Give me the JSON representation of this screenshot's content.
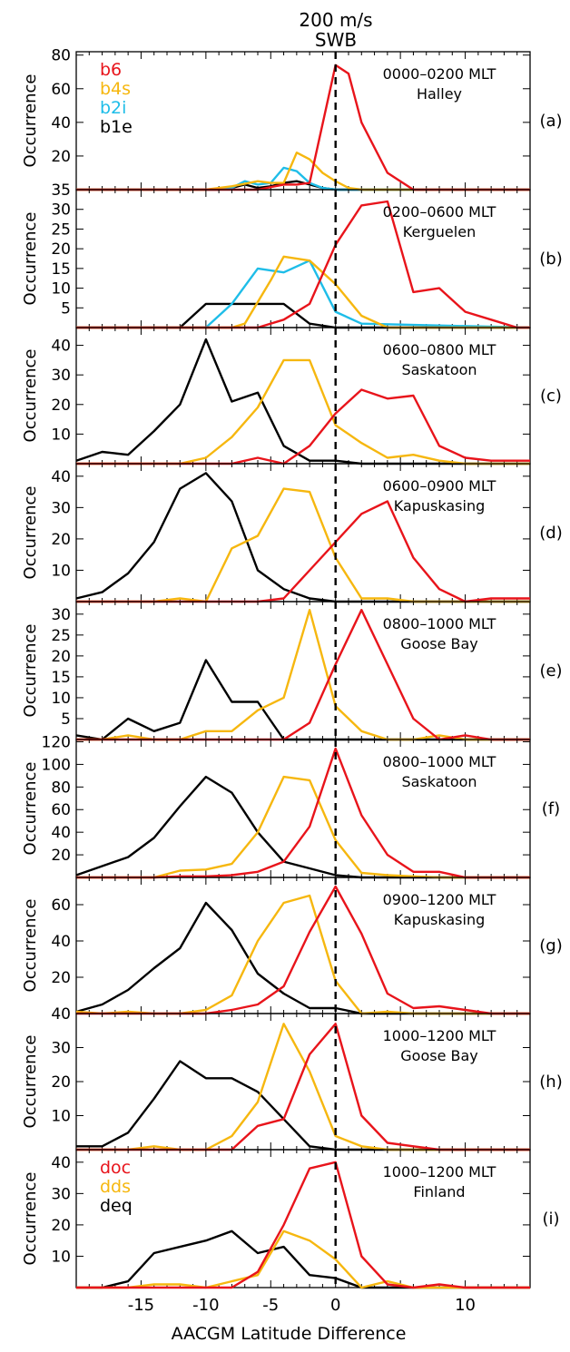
{
  "header": {
    "speed": "200 m/s",
    "boundary": "SWB"
  },
  "xlabel": "AACGM Latitude Difference",
  "xticks": [
    -15,
    -10,
    -5,
    0,
    10
  ],
  "legend_top": [
    {
      "label": "b6",
      "color": "#e8141b"
    },
    {
      "label": "b4s",
      "color": "#f6b70f"
    },
    {
      "label": "b2i",
      "color": "#1ebde8"
    },
    {
      "label": "b1e",
      "color": "#000000"
    }
  ],
  "legend_bottom": [
    {
      "label": "doc",
      "color": "#e8141b"
    },
    {
      "label": "dds",
      "color": "#f6b70f"
    },
    {
      "label": "deq",
      "color": "#000000"
    }
  ],
  "chart_data": [
    {
      "type": "line",
      "panel": "(a)",
      "mlt": "0000–0200 MLT",
      "station": "Halley",
      "ylabel": "Occurrence",
      "xlim": [
        -20,
        15
      ],
      "ylim": [
        0,
        82
      ],
      "yticks": [
        20,
        40,
        60,
        80
      ],
      "series": [
        {
          "name": "b6",
          "color": "#e8141b",
          "x": [
            -20,
            -18,
            -16,
            -14,
            -12,
            -10,
            -8,
            -6,
            -4,
            -3,
            -2,
            0,
            1,
            2,
            4,
            5,
            6,
            8,
            10,
            12,
            14,
            15
          ],
          "y": [
            0,
            0,
            0,
            0,
            0,
            0,
            0,
            0,
            3,
            3,
            4,
            74,
            69,
            40,
            10,
            5,
            0,
            0,
            0,
            0,
            0,
            0
          ]
        },
        {
          "name": "b4s",
          "color": "#f6b70f",
          "x": [
            -20,
            -10,
            -8,
            -6,
            -5,
            -4,
            -3,
            -2,
            -1,
            0,
            1,
            2,
            15
          ],
          "y": [
            0,
            0,
            2,
            5,
            4,
            4,
            22,
            18,
            10,
            5,
            1,
            0,
            0
          ]
        },
        {
          "name": "b2i",
          "color": "#1ebde8",
          "x": [
            -20,
            -10,
            -8,
            -7,
            -6,
            -5,
            -4,
            -3,
            -2,
            -1,
            0,
            15
          ],
          "y": [
            0,
            0,
            1,
            5,
            3,
            4,
            13,
            11,
            4,
            1,
            0,
            0
          ]
        },
        {
          "name": "b1e",
          "color": "#000000",
          "x": [
            -20,
            -9,
            -8,
            -7,
            -6,
            -5,
            -4,
            -3,
            -2,
            -1,
            0,
            15
          ],
          "y": [
            0,
            0,
            1,
            3,
            1,
            2,
            4,
            5,
            3,
            1,
            0,
            0
          ]
        }
      ]
    },
    {
      "type": "line",
      "panel": "(b)",
      "mlt": "0200–0600 MLT",
      "station": "Kerguelen",
      "ylabel": "Occurrence",
      "xlim": [
        -20,
        15
      ],
      "ylim": [
        0,
        35
      ],
      "yticks": [
        5,
        10,
        15,
        20,
        25,
        30,
        35
      ],
      "series": [
        {
          "name": "b6",
          "color": "#e8141b",
          "x": [
            -20,
            -6,
            -4,
            -2,
            0,
            2,
            4,
            6,
            8,
            10,
            12,
            14,
            15
          ],
          "y": [
            0,
            0,
            2,
            6,
            21,
            31,
            32,
            9,
            10,
            4,
            2,
            0,
            0
          ]
        },
        {
          "name": "b4s",
          "color": "#f6b70f",
          "x": [
            -20,
            -8,
            -7,
            -5,
            -4,
            -2,
            0,
            2,
            4,
            15
          ],
          "y": [
            0,
            0,
            1,
            12,
            18,
            17,
            11,
            3,
            0,
            0
          ]
        },
        {
          "name": "b2i",
          "color": "#1ebde8",
          "x": [
            -20,
            -10,
            -8,
            -6,
            -4,
            -2,
            0,
            2,
            15
          ],
          "y": [
            0,
            0,
            6,
            15,
            14,
            17,
            4,
            1,
            0
          ]
        },
        {
          "name": "b1e",
          "color": "#000000",
          "x": [
            -20,
            -12,
            -10,
            -8,
            -6,
            -4,
            -2,
            0,
            15
          ],
          "y": [
            0,
            0,
            6,
            6,
            6,
            6,
            1,
            0,
            0
          ]
        }
      ]
    },
    {
      "type": "line",
      "panel": "(c)",
      "mlt": "0600–0800 MLT",
      "station": "Saskatoon",
      "ylabel": "Occurrence",
      "xlim": [
        -20,
        15
      ],
      "ylim": [
        0,
        46
      ],
      "yticks": [
        10,
        20,
        30,
        40
      ],
      "series": [
        {
          "name": "b6",
          "color": "#e8141b",
          "x": [
            -20,
            -8,
            -6,
            -4,
            -2,
            0,
            2,
            4,
            6,
            8,
            10,
            12,
            14,
            15
          ],
          "y": [
            0,
            0,
            2,
            0,
            6,
            17,
            25,
            22,
            23,
            6,
            2,
            1,
            1,
            1
          ]
        },
        {
          "name": "b4s",
          "color": "#f6b70f",
          "x": [
            -20,
            -12,
            -10,
            -8,
            -6,
            -4,
            -2,
            0,
            2,
            4,
            6,
            8,
            10,
            15
          ],
          "y": [
            0,
            0,
            2,
            9,
            19,
            35,
            35,
            13,
            7,
            2,
            3,
            1,
            0,
            0
          ]
        },
        {
          "name": "b1e",
          "color": "#000000",
          "x": [
            -20,
            -18,
            -16,
            -14,
            -12,
            -10,
            -8,
            -6,
            -4,
            -2,
            0,
            2,
            15
          ],
          "y": [
            1,
            4,
            3,
            11,
            20,
            42,
            21,
            24,
            6,
            1,
            1,
            0,
            0
          ]
        }
      ]
    },
    {
      "type": "line",
      "panel": "(d)",
      "mlt": "0600–0900 MLT",
      "station": "Kapuskasing",
      "ylabel": "Occurrence",
      "xlim": [
        -20,
        15
      ],
      "ylim": [
        0,
        44
      ],
      "yticks": [
        10,
        20,
        30,
        40
      ],
      "series": [
        {
          "name": "b6",
          "color": "#e8141b",
          "x": [
            -20,
            -6,
            -4,
            -2,
            0,
            2,
            4,
            6,
            8,
            10,
            12,
            14,
            15
          ],
          "y": [
            0,
            0,
            1,
            10,
            19,
            28,
            32,
            14,
            4,
            0,
            1,
            1,
            1
          ]
        },
        {
          "name": "b4s",
          "color": "#f6b70f",
          "x": [
            -20,
            -14,
            -12,
            -10,
            -8,
            -6,
            -4,
            -2,
            0,
            2,
            4,
            6,
            15
          ],
          "y": [
            0,
            0,
            1,
            0,
            17,
            21,
            36,
            35,
            14,
            1,
            1,
            0,
            0
          ]
        },
        {
          "name": "b1e",
          "color": "#000000",
          "x": [
            -20,
            -18,
            -16,
            -14,
            -12,
            -10,
            -8,
            -6,
            -4,
            -2,
            0,
            2,
            15
          ],
          "y": [
            1,
            3,
            9,
            19,
            36,
            41,
            32,
            10,
            4,
            1,
            0,
            0,
            0
          ]
        }
      ]
    },
    {
      "type": "line",
      "panel": "(e)",
      "mlt": "0800–1000 MLT",
      "station": "Goose Bay",
      "ylabel": "Occurrence",
      "xlim": [
        -20,
        15
      ],
      "ylim": [
        0,
        33
      ],
      "yticks": [
        5,
        10,
        15,
        20,
        25,
        30
      ],
      "series": [
        {
          "name": "b6",
          "color": "#e8141b",
          "x": [
            -20,
            -4,
            -2,
            0,
            2,
            4,
            6,
            8,
            10,
            12,
            14,
            15
          ],
          "y": [
            0,
            0,
            4,
            18,
            31,
            18,
            5,
            0,
            1,
            0,
            0,
            0
          ]
        },
        {
          "name": "b4s",
          "color": "#f6b70f",
          "x": [
            -20,
            -18,
            -16,
            -14,
            -12,
            -10,
            -8,
            -6,
            -4,
            -2,
            0,
            2,
            4,
            6,
            8,
            10,
            15
          ],
          "y": [
            0,
            0,
            1,
            0,
            0,
            2,
            2,
            7,
            10,
            31,
            8,
            2,
            0,
            0,
            1,
            0,
            0
          ]
        },
        {
          "name": "b1e",
          "color": "#000000",
          "x": [
            -20,
            -18,
            -16,
            -14,
            -12,
            -10,
            -8,
            -6,
            -4,
            15
          ],
          "y": [
            1,
            0,
            5,
            2,
            4,
            19,
            9,
            9,
            0,
            0
          ]
        }
      ]
    },
    {
      "type": "line",
      "panel": "(f)",
      "mlt": "0800–1000 MLT",
      "station": "Saskatoon",
      "ylabel": "Occurrence",
      "xlim": [
        -20,
        15
      ],
      "ylim": [
        0,
        122
      ],
      "yticks": [
        20,
        40,
        60,
        80,
        100,
        120
      ],
      "series": [
        {
          "name": "b6",
          "color": "#e8141b",
          "x": [
            -20,
            -14,
            -12,
            -10,
            -8,
            -6,
            -4,
            -2,
            0,
            2,
            4,
            6,
            8,
            10,
            15
          ],
          "y": [
            0,
            0,
            1,
            1,
            2,
            5,
            14,
            45,
            114,
            55,
            20,
            5,
            5,
            0,
            0
          ]
        },
        {
          "name": "b4s",
          "color": "#f6b70f",
          "x": [
            -20,
            -14,
            -12,
            -10,
            -8,
            -6,
            -4,
            -2,
            0,
            2,
            4,
            6,
            8,
            15
          ],
          "y": [
            0,
            0,
            6,
            7,
            12,
            40,
            89,
            86,
            33,
            4,
            2,
            1,
            0,
            0
          ]
        },
        {
          "name": "b1e",
          "color": "#000000",
          "x": [
            -20,
            -18,
            -16,
            -14,
            -12,
            -10,
            -8,
            -6,
            -4,
            -2,
            0,
            2,
            15
          ],
          "y": [
            2,
            10,
            18,
            35,
            63,
            89,
            75,
            40,
            14,
            8,
            2,
            0,
            0
          ]
        }
      ]
    },
    {
      "type": "line",
      "panel": "(g)",
      "mlt": "0900–1200 MLT",
      "station": "Kapuskasing",
      "ylabel": "Occurrence",
      "xlim": [
        -20,
        15
      ],
      "ylim": [
        0,
        75
      ],
      "yticks": [
        20,
        40,
        60
      ],
      "series": [
        {
          "name": "b6",
          "color": "#e8141b",
          "x": [
            -20,
            -10,
            -8,
            -6,
            -4,
            -2,
            0,
            2,
            4,
            6,
            8,
            10,
            12,
            14,
            15
          ],
          "y": [
            0,
            0,
            2,
            5,
            15,
            45,
            70,
            44,
            11,
            3,
            4,
            2,
            0,
            0,
            0
          ]
        },
        {
          "name": "b4s",
          "color": "#f6b70f",
          "x": [
            -20,
            -18,
            -16,
            -14,
            -12,
            -10,
            -8,
            -6,
            -4,
            -2,
            0,
            2,
            4,
            6,
            15
          ],
          "y": [
            1,
            0,
            1,
            0,
            0,
            2,
            10,
            40,
            61,
            65,
            18,
            0,
            1,
            0,
            0
          ]
        },
        {
          "name": "b1e",
          "color": "#000000",
          "x": [
            -20,
            -18,
            -16,
            -14,
            -12,
            -10,
            -8,
            -6,
            -4,
            -2,
            0,
            2,
            15
          ],
          "y": [
            1,
            5,
            13,
            25,
            36,
            61,
            46,
            22,
            11,
            3,
            3,
            0,
            0
          ]
        }
      ]
    },
    {
      "type": "line",
      "panel": "(h)",
      "mlt": "1000–1200 MLT",
      "station": "Goose Bay",
      "ylabel": "Occurrence",
      "xlim": [
        -20,
        15
      ],
      "ylim": [
        0,
        40
      ],
      "yticks": [
        10,
        20,
        30,
        40
      ],
      "series": [
        {
          "name": "b6",
          "color": "#e8141b",
          "x": [
            -20,
            -8,
            -6,
            -4,
            -2,
            0,
            2,
            4,
            6,
            8,
            10,
            15
          ],
          "y": [
            0,
            0,
            7,
            9,
            28,
            37,
            10,
            2,
            1,
            0,
            0,
            0
          ]
        },
        {
          "name": "b4s",
          "color": "#f6b70f",
          "x": [
            -20,
            -16,
            -14,
            -12,
            -10,
            -8,
            -6,
            -4,
            -2,
            0,
            2,
            4,
            6,
            15
          ],
          "y": [
            0,
            0,
            1,
            0,
            0,
            4,
            14,
            37,
            23,
            4,
            1,
            0,
            0,
            0
          ]
        },
        {
          "name": "b1e",
          "color": "#000000",
          "x": [
            -20,
            -18,
            -16,
            -14,
            -12,
            -10,
            -8,
            -6,
            -4,
            -2,
            0,
            2,
            15
          ],
          "y": [
            1,
            1,
            5,
            15,
            26,
            21,
            21,
            17,
            9,
            1,
            0,
            0,
            0
          ]
        }
      ]
    },
    {
      "type": "line",
      "panel": "(i)",
      "mlt": "1000–1200 MLT",
      "station": "Finland",
      "ylabel": "Occurrence",
      "xlim": [
        -20,
        15
      ],
      "ylim": [
        0,
        44
      ],
      "yticks": [
        10,
        20,
        30,
        40
      ],
      "series": [
        {
          "name": "doc",
          "color": "#e8141b",
          "x": [
            -20,
            -8,
            -6,
            -4,
            -2,
            0,
            2,
            4,
            6,
            8,
            10,
            12,
            14,
            15
          ],
          "y": [
            0,
            0,
            5,
            20,
            38,
            40,
            10,
            1,
            0,
            1,
            0,
            0,
            0,
            0
          ]
        },
        {
          "name": "dds",
          "color": "#f6b70f",
          "x": [
            -20,
            -16,
            -14,
            -12,
            -10,
            -8,
            -6,
            -4,
            -2,
            0,
            2,
            4,
            6,
            8,
            15
          ],
          "y": [
            0,
            0,
            1,
            1,
            0,
            2,
            4,
            18,
            15,
            9,
            0,
            2,
            0,
            0,
            0
          ]
        },
        {
          "name": "deq",
          "color": "#000000",
          "x": [
            -20,
            -18,
            -16,
            -14,
            -12,
            -10,
            -8,
            -6,
            -4,
            -2,
            0,
            2,
            15
          ],
          "y": [
            0,
            0,
            2,
            11,
            13,
            15,
            18,
            11,
            13,
            4,
            3,
            0,
            0
          ]
        }
      ]
    }
  ]
}
